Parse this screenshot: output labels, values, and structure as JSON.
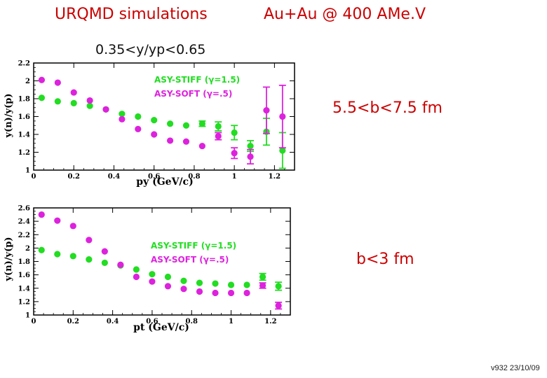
{
  "header": {
    "title_left": "URQMD simulations",
    "title_right": "Au+Au @ 400 AMe.V",
    "rapidity_cut": "0.35<y/yp<0.65",
    "centrality_top": "5.5<b<7.5 fm",
    "centrality_bottom": "b<3 fm",
    "footer": "v932 23/10/09"
  },
  "colors": {
    "stiff": "#22dd22",
    "soft": "#dd22dd",
    "header_text": "#cc0000",
    "axis": "#000000"
  },
  "chart_data": [
    {
      "type": "scatter",
      "xlabel": "py (GeV/c)",
      "ylabel": "y(n)/y(p)",
      "xlim": [
        0,
        1.3
      ],
      "ylim": [
        1.0,
        2.2
      ],
      "xticks": [
        "0",
        "0.2",
        "0.4",
        "0.6",
        "0.8",
        "1",
        "1.2"
      ],
      "yticks": [
        "1",
        "1.2",
        "1.4",
        "1.6",
        "1.8",
        "2",
        "2.2"
      ],
      "legend": [
        {
          "label": "ASY-STIFF (γ=1.5)",
          "color": "#22dd22"
        },
        {
          "label": "ASY-SOFT (γ=.5)",
          "color": "#dd22dd"
        }
      ],
      "series": [
        {
          "name": "ASY-STIFF (γ=1.5)",
          "color": "#22dd22",
          "x": [
            0.04,
            0.12,
            0.2,
            0.28,
            0.36,
            0.44,
            0.52,
            0.6,
            0.68,
            0.76,
            0.84,
            0.92,
            1.0,
            1.08,
            1.16,
            1.24
          ],
          "y": [
            1.81,
            1.77,
            1.75,
            1.72,
            1.68,
            1.63,
            1.6,
            1.56,
            1.52,
            1.5,
            1.52,
            1.49,
            1.42,
            1.27,
            1.43,
            1.22
          ],
          "err": [
            0,
            0,
            0,
            0,
            0,
            0,
            0,
            0,
            0,
            0,
            0.03,
            0.05,
            0.08,
            0.06,
            0.15,
            0.2
          ]
        },
        {
          "name": "ASY-SOFT (γ=.5)",
          "color": "#dd22dd",
          "x": [
            0.04,
            0.12,
            0.2,
            0.28,
            0.36,
            0.44,
            0.52,
            0.6,
            0.68,
            0.76,
            0.84,
            0.92,
            1.0,
            1.08,
            1.16,
            1.24
          ],
          "y": [
            2.01,
            1.98,
            1.87,
            1.78,
            1.68,
            1.57,
            1.46,
            1.4,
            1.33,
            1.32,
            1.27,
            1.38,
            1.19,
            1.15,
            1.67,
            1.6
          ],
          "err": [
            0,
            0,
            0,
            0,
            0,
            0,
            0,
            0,
            0,
            0,
            0,
            0.04,
            0.06,
            0.08,
            0.26,
            0.35
          ]
        }
      ]
    },
    {
      "type": "scatter",
      "xlabel": "pt (GeV/c)",
      "ylabel": "y(n)/y(p)",
      "xlim": [
        0,
        1.3
      ],
      "ylim": [
        1.0,
        2.6
      ],
      "xticks": [
        "0",
        "0.2",
        "0.4",
        "0.6",
        "0.8",
        "1",
        "1.2"
      ],
      "yticks": [
        "1",
        "1.2",
        "1.4",
        "1.6",
        "1.8",
        "2",
        "2.2",
        "2.4",
        "2.6"
      ],
      "legend": [
        {
          "label": "ASY-STIFF (γ=1.5)",
          "color": "#22dd22"
        },
        {
          "label": "ASY-SOFT (γ=.5)",
          "color": "#dd22dd"
        }
      ],
      "series": [
        {
          "name": "ASY-STIFF (γ=1.5)",
          "color": "#22dd22",
          "x": [
            0.04,
            0.12,
            0.2,
            0.28,
            0.36,
            0.44,
            0.52,
            0.6,
            0.68,
            0.76,
            0.84,
            0.92,
            1.0,
            1.08,
            1.16,
            1.24
          ],
          "y": [
            1.97,
            1.91,
            1.88,
            1.83,
            1.78,
            1.74,
            1.68,
            1.61,
            1.57,
            1.51,
            1.48,
            1.47,
            1.45,
            1.45,
            1.57,
            1.43
          ],
          "err": [
            0,
            0,
            0,
            0,
            0,
            0,
            0,
            0,
            0,
            0,
            0,
            0,
            0,
            0,
            0.05,
            0.06
          ]
        },
        {
          "name": "ASY-SOFT (γ=.5)",
          "color": "#dd22dd",
          "x": [
            0.04,
            0.12,
            0.2,
            0.28,
            0.36,
            0.44,
            0.52,
            0.6,
            0.68,
            0.76,
            0.84,
            0.92,
            1.0,
            1.08,
            1.16,
            1.24
          ],
          "y": [
            2.5,
            2.41,
            2.33,
            2.12,
            1.95,
            1.75,
            1.57,
            1.5,
            1.43,
            1.39,
            1.35,
            1.33,
            1.33,
            1.33,
            1.44,
            1.14
          ],
          "err": [
            0,
            0,
            0,
            0,
            0,
            0,
            0,
            0,
            0,
            0,
            0,
            0,
            0,
            0,
            0.04,
            0.05
          ]
        }
      ]
    }
  ]
}
